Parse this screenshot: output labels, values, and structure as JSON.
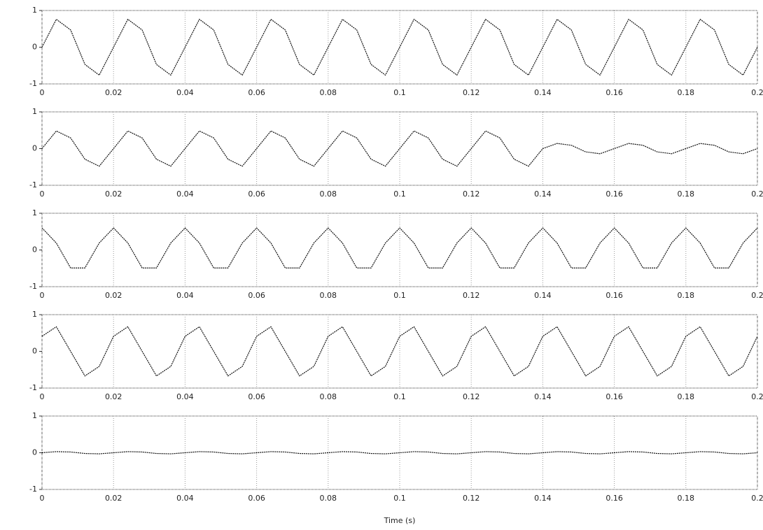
{
  "chart_data": [
    {
      "type": "line",
      "color": "#111111",
      "grid": true,
      "xlim": [
        0,
        0.2
      ],
      "xticks": [
        0,
        0.02,
        0.04,
        0.06,
        0.08,
        0.1,
        0.12,
        0.14,
        0.16,
        0.18,
        0.2
      ],
      "ylim": [
        -1,
        1
      ],
      "yticks": [
        -1,
        0,
        1
      ],
      "x": [
        0,
        0.004,
        0.008,
        0.012,
        0.016,
        0.02,
        0.024,
        0.028,
        0.032,
        0.036,
        0.04,
        0.044,
        0.048,
        0.052,
        0.056,
        0.06,
        0.064,
        0.068,
        0.072,
        0.076,
        0.08,
        0.084,
        0.088,
        0.092,
        0.096,
        0.1,
        0.104,
        0.108,
        0.112,
        0.116,
        0.12,
        0.124,
        0.128,
        0.132,
        0.136,
        0.14,
        0.144,
        0.148,
        0.152,
        0.156,
        0.16,
        0.164,
        0.168,
        0.172,
        0.176,
        0.18,
        0.184,
        0.188,
        0.192,
        0.196,
        0.2
      ],
      "values": [
        0,
        0.76,
        0.47,
        -0.47,
        -0.76,
        0,
        0.76,
        0.47,
        -0.47,
        -0.76,
        0,
        0.76,
        0.47,
        -0.47,
        -0.76,
        0,
        0.76,
        0.47,
        -0.47,
        -0.76,
        0,
        0.76,
        0.47,
        -0.47,
        -0.76,
        0,
        0.76,
        0.47,
        -0.47,
        -0.76,
        0,
        0.76,
        0.47,
        -0.47,
        -0.76,
        0,
        0.76,
        0.47,
        -0.47,
        -0.76,
        0,
        0.76,
        0.47,
        -0.47,
        -0.76,
        0,
        0.76,
        0.47,
        -0.47,
        -0.76,
        0
      ]
    },
    {
      "type": "line",
      "color": "#111111",
      "grid": true,
      "xlim": [
        0,
        0.2
      ],
      "xticks": [
        0,
        0.02,
        0.04,
        0.06,
        0.08,
        0.1,
        0.12,
        0.14,
        0.16,
        0.18,
        0.2
      ],
      "ylim": [
        -1,
        1
      ],
      "yticks": [
        -1,
        0,
        1
      ],
      "x": [
        0,
        0.004,
        0.008,
        0.012,
        0.016,
        0.02,
        0.024,
        0.028,
        0.032,
        0.036,
        0.04,
        0.044,
        0.048,
        0.052,
        0.056,
        0.06,
        0.064,
        0.068,
        0.072,
        0.076,
        0.08,
        0.084,
        0.088,
        0.092,
        0.096,
        0.1,
        0.104,
        0.108,
        0.112,
        0.116,
        0.12,
        0.124,
        0.128,
        0.132,
        0.136,
        0.14,
        0.144,
        0.148,
        0.152,
        0.156,
        0.16,
        0.164,
        0.168,
        0.172,
        0.176,
        0.18,
        0.184,
        0.188,
        0.192,
        0.196,
        0.2
      ],
      "values": [
        0,
        0.48,
        0.29,
        -0.29,
        -0.48,
        0,
        0.48,
        0.29,
        -0.29,
        -0.48,
        0,
        0.48,
        0.29,
        -0.29,
        -0.48,
        0,
        0.48,
        0.29,
        -0.29,
        -0.48,
        0,
        0.48,
        0.29,
        -0.29,
        -0.48,
        0,
        0.48,
        0.29,
        -0.29,
        -0.48,
        0,
        0.48,
        0.29,
        -0.29,
        -0.48,
        0,
        0.14,
        0.09,
        -0.09,
        -0.14,
        0,
        0.14,
        0.09,
        -0.09,
        -0.14,
        0,
        0.14,
        0.09,
        -0.09,
        -0.14,
        0
      ]
    },
    {
      "type": "line",
      "color": "#111111",
      "grid": true,
      "xlim": [
        0,
        0.2
      ],
      "xticks": [
        0,
        0.02,
        0.04,
        0.06,
        0.08,
        0.1,
        0.12,
        0.14,
        0.16,
        0.18,
        0.2
      ],
      "ylim": [
        -1,
        1
      ],
      "yticks": [
        -1,
        0,
        1
      ],
      "x": [
        0,
        0.004,
        0.008,
        0.012,
        0.016,
        0.02,
        0.024,
        0.028,
        0.032,
        0.036,
        0.04,
        0.044,
        0.048,
        0.052,
        0.056,
        0.06,
        0.064,
        0.068,
        0.072,
        0.076,
        0.08,
        0.084,
        0.088,
        0.092,
        0.096,
        0.1,
        0.104,
        0.108,
        0.112,
        0.116,
        0.12,
        0.124,
        0.128,
        0.132,
        0.136,
        0.14,
        0.144,
        0.148,
        0.152,
        0.156,
        0.16,
        0.164,
        0.168,
        0.172,
        0.176,
        0.18,
        0.184,
        0.188,
        0.192,
        0.196,
        0.2
      ],
      "values": [
        0.6,
        0.19,
        -0.49,
        -0.49,
        0.19,
        0.6,
        0.19,
        -0.49,
        -0.49,
        0.19,
        0.6,
        0.19,
        -0.49,
        -0.49,
        0.19,
        0.6,
        0.19,
        -0.49,
        -0.49,
        0.19,
        0.6,
        0.19,
        -0.49,
        -0.49,
        0.19,
        0.6,
        0.19,
        -0.49,
        -0.49,
        0.19,
        0.6,
        0.19,
        -0.49,
        -0.49,
        0.19,
        0.6,
        0.19,
        -0.49,
        -0.49,
        0.19,
        0.6,
        0.19,
        -0.49,
        -0.49,
        0.19,
        0.6,
        0.19,
        -0.49,
        -0.49,
        0.19,
        0.6
      ]
    },
    {
      "type": "line",
      "color": "#111111",
      "grid": true,
      "xlim": [
        0,
        0.2
      ],
      "xticks": [
        0,
        0.02,
        0.04,
        0.06,
        0.08,
        0.1,
        0.12,
        0.14,
        0.16,
        0.18,
        0.2
      ],
      "ylim": [
        -1,
        1
      ],
      "yticks": [
        -1,
        0,
        1
      ],
      "x": [
        0,
        0.004,
        0.008,
        0.012,
        0.016,
        0.02,
        0.024,
        0.028,
        0.032,
        0.036,
        0.04,
        0.044,
        0.048,
        0.052,
        0.056,
        0.06,
        0.064,
        0.068,
        0.072,
        0.076,
        0.08,
        0.084,
        0.088,
        0.092,
        0.096,
        0.1,
        0.104,
        0.108,
        0.112,
        0.116,
        0.12,
        0.124,
        0.128,
        0.132,
        0.136,
        0.14,
        0.144,
        0.148,
        0.152,
        0.156,
        0.16,
        0.164,
        0.168,
        0.172,
        0.176,
        0.18,
        0.184,
        0.188,
        0.192,
        0.196,
        0.2
      ],
      "values": [
        0.41,
        0.67,
        0,
        -0.67,
        -0.41,
        0.41,
        0.67,
        0,
        -0.67,
        -0.41,
        0.41,
        0.67,
        0,
        -0.67,
        -0.41,
        0.41,
        0.67,
        0,
        -0.67,
        -0.41,
        0.41,
        0.67,
        0,
        -0.67,
        -0.41,
        0.41,
        0.67,
        0,
        -0.67,
        -0.41,
        0.41,
        0.67,
        0,
        -0.67,
        -0.41,
        0.41,
        0.67,
        0,
        -0.67,
        -0.41,
        0.41,
        0.67,
        0,
        -0.67,
        -0.41,
        0.41,
        0.67,
        0,
        -0.67,
        -0.41,
        0.41
      ]
    },
    {
      "type": "line",
      "color": "#111111",
      "grid": true,
      "xlim": [
        0,
        0.2
      ],
      "xticks": [
        0,
        0.02,
        0.04,
        0.06,
        0.08,
        0.1,
        0.12,
        0.14,
        0.16,
        0.18,
        0.2
      ],
      "ylim": [
        -1,
        1
      ],
      "yticks": [
        -1,
        0,
        1
      ],
      "xlabel": "Time (s)",
      "x": [
        0,
        0.004,
        0.008,
        0.012,
        0.016,
        0.02,
        0.024,
        0.028,
        0.032,
        0.036,
        0.04,
        0.044,
        0.048,
        0.052,
        0.056,
        0.06,
        0.064,
        0.068,
        0.072,
        0.076,
        0.08,
        0.084,
        0.088,
        0.092,
        0.096,
        0.1,
        0.104,
        0.108,
        0.112,
        0.116,
        0.12,
        0.124,
        0.128,
        0.132,
        0.136,
        0.14,
        0.144,
        0.148,
        0.152,
        0.156,
        0.16,
        0.164,
        0.168,
        0.172,
        0.176,
        0.18,
        0.184,
        0.188,
        0.192,
        0.196,
        0.2
      ],
      "values": [
        0,
        0.03,
        0.02,
        -0.02,
        -0.03,
        0,
        0.03,
        0.02,
        -0.02,
        -0.03,
        0,
        0.03,
        0.02,
        -0.02,
        -0.03,
        0,
        0.03,
        0.02,
        -0.02,
        -0.03,
        0,
        0.03,
        0.02,
        -0.02,
        -0.03,
        0,
        0.03,
        0.02,
        -0.02,
        -0.03,
        0,
        0.03,
        0.02,
        -0.02,
        -0.03,
        0,
        0.03,
        0.02,
        -0.02,
        -0.03,
        0,
        0.03,
        0.02,
        -0.02,
        -0.03,
        0,
        0.03,
        0.02,
        -0.02,
        -0.03,
        0
      ]
    }
  ]
}
